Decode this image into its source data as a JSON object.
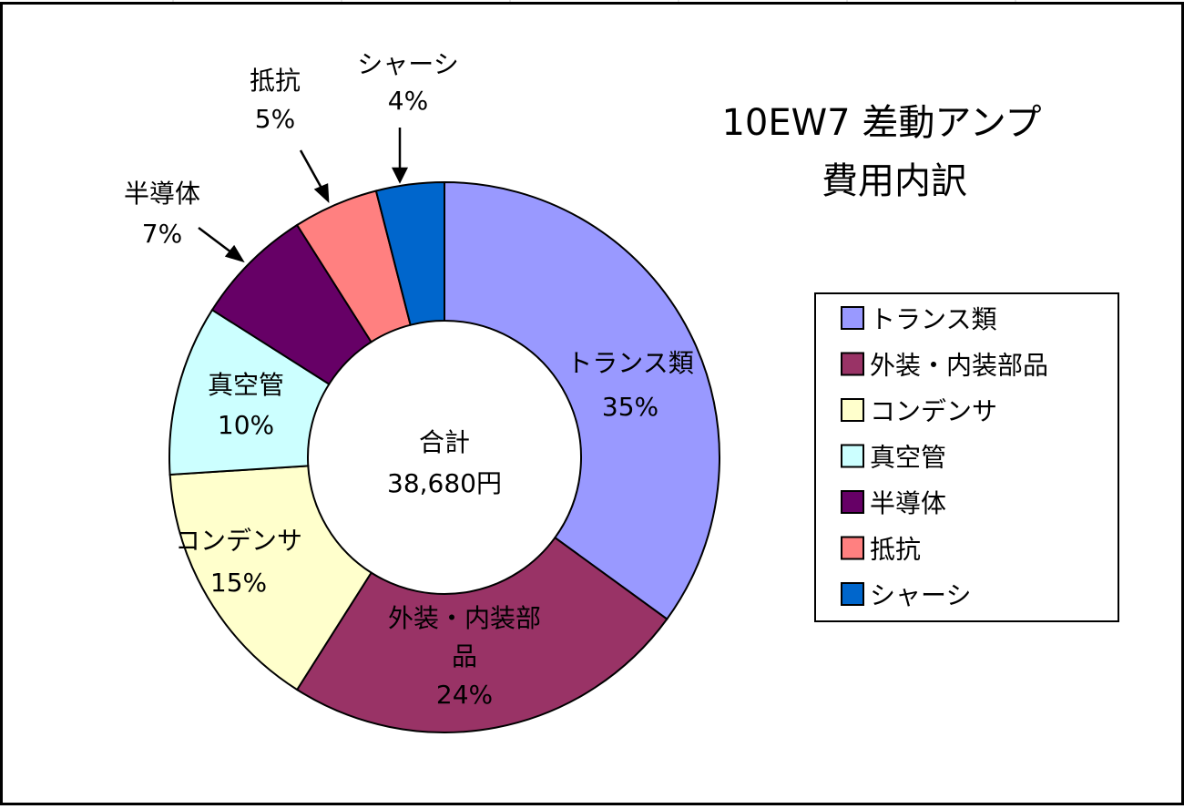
{
  "chart_data": {
    "type": "pie",
    "variant": "doughnut",
    "title_lines": [
      "10EW7 差動アンプ",
      "費用内訳"
    ],
    "center_label": "合計",
    "center_value": "38,680円",
    "legend_position": "right",
    "slices": [
      {
        "label": "トランス類",
        "percent": 35,
        "percent_label": "35%",
        "color": "#9999ff"
      },
      {
        "label": "外装・内装部品",
        "percent": 24,
        "percent_label": "24%",
        "color": "#993366"
      },
      {
        "label": "コンデンサ",
        "percent": 15,
        "percent_label": "15%",
        "color": "#ffffcc"
      },
      {
        "label": "真空管",
        "percent": 10,
        "percent_label": "10%",
        "color": "#ccffff"
      },
      {
        "label": "半導体",
        "percent": 7,
        "percent_label": "7%",
        "color": "#660066"
      },
      {
        "label": "抵抗",
        "percent": 5,
        "percent_label": "5%",
        "color": "#ff8080"
      },
      {
        "label": "シャーシ",
        "percent": 4,
        "percent_label": "4%",
        "color": "#0066cc"
      }
    ],
    "slice_label_lines": [
      [
        "トランス類"
      ],
      [
        "外装・内装部",
        "品"
      ],
      [
        "コンデンサ"
      ],
      [
        "真空管"
      ],
      [
        "半導体"
      ],
      [
        "抵抗"
      ],
      [
        "シャーシ"
      ]
    ],
    "legend_entries": [
      "トランス類",
      "外装・内装部品",
      "コンデンサ",
      "真空管",
      "半導体",
      "抵抗",
      "シャーシ"
    ]
  }
}
